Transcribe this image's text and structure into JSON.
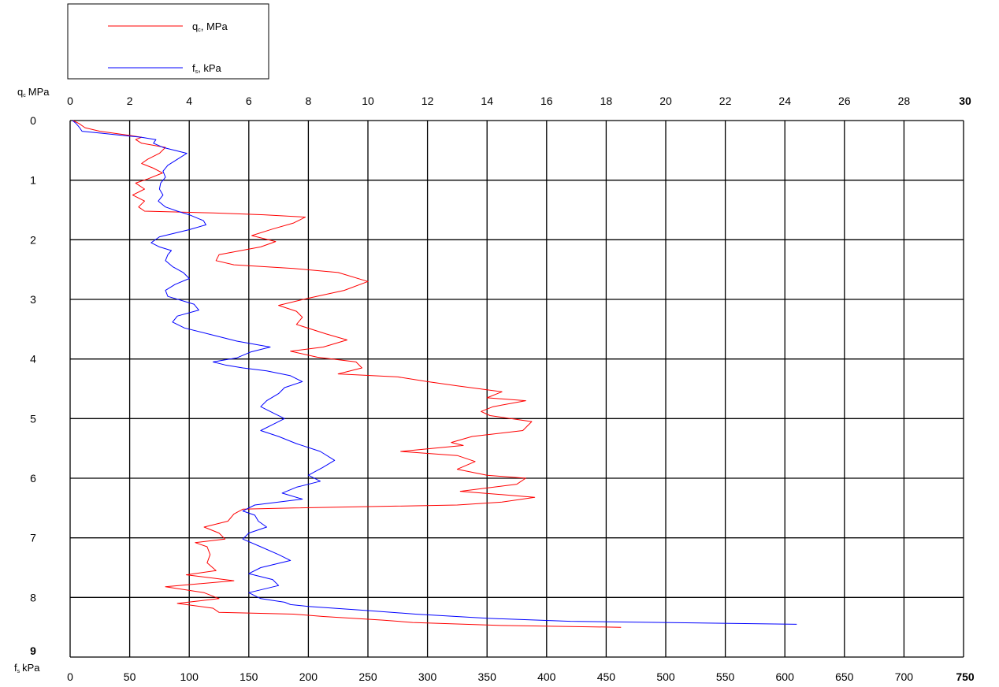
{
  "chart_data": {
    "type": "line",
    "legend_position": "top-left",
    "grid": true,
    "y_axis": {
      "label_main": "q",
      "label_sub": "c",
      "label_unit": "MPa",
      "range": [
        0,
        9
      ],
      "ticks": [
        0,
        1,
        2,
        3,
        4,
        5,
        6,
        7,
        8,
        9
      ],
      "inverted": true
    },
    "x_axis_top": {
      "label": "",
      "range": [
        0,
        30
      ],
      "ticks": [
        0,
        2,
        4,
        6,
        8,
        10,
        12,
        14,
        16,
        18,
        20,
        22,
        24,
        26,
        28,
        30
      ]
    },
    "x_axis_bottom": {
      "label_main": "f",
      "label_sub": "s",
      "label_unit": "kPa",
      "range": [
        0,
        750
      ],
      "ticks": [
        0,
        50,
        100,
        150,
        200,
        250,
        300,
        350,
        400,
        450,
        500,
        550,
        600,
        650,
        700,
        750
      ]
    },
    "series": [
      {
        "name_main": "q",
        "name_sub": "c",
        "name_unit": ", MPa",
        "axis": "top",
        "color": "#ff0000",
        "points": [
          [
            0.1,
            0.0
          ],
          [
            0.3,
            0.05
          ],
          [
            0.5,
            0.12
          ],
          [
            1.0,
            0.18
          ],
          [
            2.0,
            0.25
          ],
          [
            2.4,
            0.28
          ],
          [
            2.2,
            0.32
          ],
          [
            2.4,
            0.38
          ],
          [
            3.2,
            0.45
          ],
          [
            3.0,
            0.55
          ],
          [
            2.6,
            0.65
          ],
          [
            2.4,
            0.72
          ],
          [
            2.8,
            0.8
          ],
          [
            3.1,
            0.88
          ],
          [
            2.6,
            0.98
          ],
          [
            2.2,
            1.05
          ],
          [
            2.5,
            1.15
          ],
          [
            2.1,
            1.25
          ],
          [
            2.5,
            1.35
          ],
          [
            2.3,
            1.45
          ],
          [
            2.5,
            1.52
          ],
          [
            4.8,
            1.55
          ],
          [
            6.5,
            1.58
          ],
          [
            7.9,
            1.62
          ],
          [
            7.5,
            1.72
          ],
          [
            6.8,
            1.82
          ],
          [
            6.1,
            1.93
          ],
          [
            6.9,
            2.03
          ],
          [
            6.4,
            2.12
          ],
          [
            5.0,
            2.25
          ],
          [
            4.9,
            2.35
          ],
          [
            5.5,
            2.42
          ],
          [
            7.5,
            2.48
          ],
          [
            9.0,
            2.55
          ],
          [
            10.0,
            2.7
          ],
          [
            9.2,
            2.85
          ],
          [
            8.0,
            2.98
          ],
          [
            7.0,
            3.1
          ],
          [
            7.6,
            3.2
          ],
          [
            7.8,
            3.3
          ],
          [
            7.6,
            3.42
          ],
          [
            8.6,
            3.58
          ],
          [
            9.3,
            3.68
          ],
          [
            8.5,
            3.8
          ],
          [
            7.4,
            3.87
          ],
          [
            8.3,
            3.97
          ],
          [
            9.6,
            4.05
          ],
          [
            9.8,
            4.15
          ],
          [
            9.0,
            4.25
          ],
          [
            11.0,
            4.3
          ],
          [
            12.0,
            4.38
          ],
          [
            13.0,
            4.45
          ],
          [
            14.5,
            4.55
          ],
          [
            14.0,
            4.65
          ],
          [
            15.3,
            4.7
          ],
          [
            14.2,
            4.8
          ],
          [
            13.8,
            4.88
          ],
          [
            14.1,
            4.95
          ],
          [
            15.5,
            5.05
          ],
          [
            15.2,
            5.2
          ],
          [
            13.5,
            5.3
          ],
          [
            12.8,
            5.4
          ],
          [
            13.2,
            5.45
          ],
          [
            11.1,
            5.55
          ],
          [
            13.0,
            5.62
          ],
          [
            13.6,
            5.72
          ],
          [
            13.0,
            5.85
          ],
          [
            14.0,
            5.95
          ],
          [
            15.3,
            6.0
          ],
          [
            15.0,
            6.1
          ],
          [
            13.1,
            6.22
          ],
          [
            15.6,
            6.32
          ],
          [
            14.5,
            6.4
          ],
          [
            13.0,
            6.45
          ],
          [
            7.5,
            6.5
          ],
          [
            5.8,
            6.52
          ],
          [
            5.5,
            6.6
          ],
          [
            5.3,
            6.72
          ],
          [
            4.5,
            6.82
          ],
          [
            5.0,
            6.92
          ],
          [
            5.2,
            7.02
          ],
          [
            4.2,
            7.08
          ],
          [
            4.6,
            7.15
          ],
          [
            4.7,
            7.28
          ],
          [
            4.6,
            7.42
          ],
          [
            4.9,
            7.55
          ],
          [
            3.9,
            7.62
          ],
          [
            5.5,
            7.72
          ],
          [
            3.2,
            7.82
          ],
          [
            4.5,
            7.92
          ],
          [
            5.0,
            8.02
          ],
          [
            3.6,
            8.1
          ],
          [
            4.8,
            8.18
          ],
          [
            5.0,
            8.25
          ],
          [
            7.5,
            8.28
          ],
          [
            8.5,
            8.32
          ],
          [
            10.5,
            8.38
          ],
          [
            11.5,
            8.42
          ],
          [
            14.5,
            8.47
          ],
          [
            18.5,
            8.5
          ]
        ]
      },
      {
        "name_main": "f",
        "name_sub": "s",
        "name_unit": ", kPa",
        "axis": "bottom",
        "color": "#0000ff",
        "points": [
          [
            2,
            0.0
          ],
          [
            5,
            0.05
          ],
          [
            8,
            0.12
          ],
          [
            10,
            0.18
          ],
          [
            40,
            0.24
          ],
          [
            60,
            0.28
          ],
          [
            72,
            0.32
          ],
          [
            70,
            0.38
          ],
          [
            78,
            0.45
          ],
          [
            98,
            0.55
          ],
          [
            90,
            0.65
          ],
          [
            82,
            0.75
          ],
          [
            78,
            0.85
          ],
          [
            80,
            0.95
          ],
          [
            76,
            1.05
          ],
          [
            75,
            1.15
          ],
          [
            78,
            1.25
          ],
          [
            74,
            1.35
          ],
          [
            80,
            1.45
          ],
          [
            90,
            1.52
          ],
          [
            100,
            1.58
          ],
          [
            112,
            1.68
          ],
          [
            114,
            1.75
          ],
          [
            100,
            1.83
          ],
          [
            75,
            1.95
          ],
          [
            68,
            2.05
          ],
          [
            75,
            2.12
          ],
          [
            85,
            2.18
          ],
          [
            82,
            2.25
          ],
          [
            80,
            2.35
          ],
          [
            86,
            2.45
          ],
          [
            95,
            2.55
          ],
          [
            100,
            2.65
          ],
          [
            88,
            2.75
          ],
          [
            80,
            2.85
          ],
          [
            82,
            2.95
          ],
          [
            104,
            3.08
          ],
          [
            108,
            3.18
          ],
          [
            90,
            3.28
          ],
          [
            86,
            3.38
          ],
          [
            96,
            3.48
          ],
          [
            120,
            3.6
          ],
          [
            140,
            3.7
          ],
          [
            168,
            3.8
          ],
          [
            152,
            3.88
          ],
          [
            140,
            3.98
          ],
          [
            120,
            4.05
          ],
          [
            130,
            4.1
          ],
          [
            145,
            4.15
          ],
          [
            165,
            4.2
          ],
          [
            185,
            4.28
          ],
          [
            195,
            4.38
          ],
          [
            180,
            4.48
          ],
          [
            175,
            4.58
          ],
          [
            165,
            4.7
          ],
          [
            160,
            4.8
          ],
          [
            170,
            4.9
          ],
          [
            180,
            5.0
          ],
          [
            170,
            5.1
          ],
          [
            160,
            5.2
          ],
          [
            175,
            5.3
          ],
          [
            190,
            5.42
          ],
          [
            210,
            5.55
          ],
          [
            222,
            5.7
          ],
          [
            212,
            5.82
          ],
          [
            200,
            5.95
          ],
          [
            210,
            6.05
          ],
          [
            190,
            6.15
          ],
          [
            178,
            6.25
          ],
          [
            195,
            6.35
          ],
          [
            155,
            6.45
          ],
          [
            145,
            6.55
          ],
          [
            155,
            6.62
          ],
          [
            158,
            6.72
          ],
          [
            165,
            6.82
          ],
          [
            150,
            6.92
          ],
          [
            145,
            7.02
          ],
          [
            160,
            7.15
          ],
          [
            175,
            7.28
          ],
          [
            185,
            7.38
          ],
          [
            160,
            7.5
          ],
          [
            150,
            7.6
          ],
          [
            170,
            7.7
          ],
          [
            175,
            7.8
          ],
          [
            150,
            7.92
          ],
          [
            160,
            8.02
          ],
          [
            180,
            8.08
          ],
          [
            185,
            8.12
          ],
          [
            200,
            8.15
          ],
          [
            250,
            8.22
          ],
          [
            290,
            8.28
          ],
          [
            350,
            8.35
          ],
          [
            420,
            8.4
          ],
          [
            610,
            8.45
          ]
        ]
      }
    ]
  }
}
